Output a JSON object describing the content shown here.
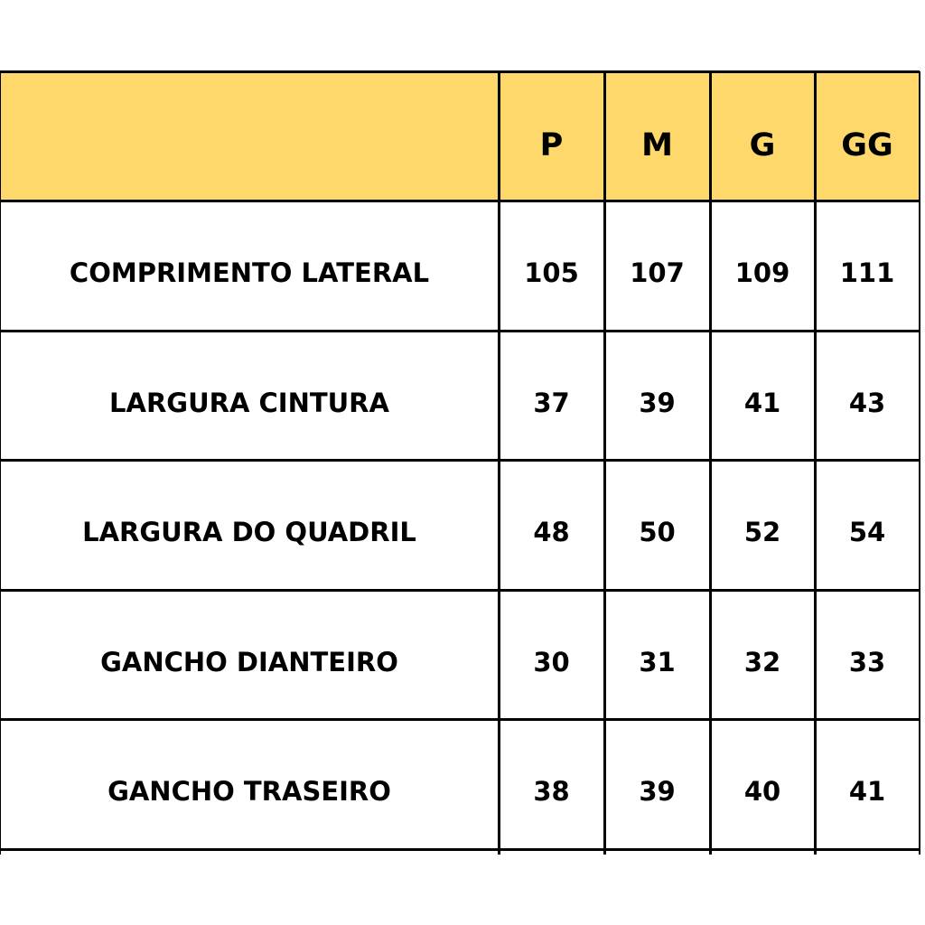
{
  "header_color": "#FED86A",
  "table": {
    "columns": [
      "",
      "P",
      "M",
      "G",
      "GG"
    ],
    "rows": [
      {
        "label": "COMPRIMENTO LATERAL",
        "values": [
          "105",
          "107",
          "109",
          "111"
        ]
      },
      {
        "label": "LARGURA CINTURA",
        "values": [
          "37",
          "39",
          "41",
          "43"
        ]
      },
      {
        "label": "LARGURA DO QUADRIL",
        "values": [
          "48",
          "50",
          "52",
          "54"
        ]
      },
      {
        "label": "GANCHO DIANTEIRO",
        "values": [
          "30",
          "31",
          "32",
          "33"
        ]
      },
      {
        "label": "GANCHO TRASEIRO",
        "values": [
          "38",
          "39",
          "40",
          "41"
        ]
      }
    ]
  }
}
